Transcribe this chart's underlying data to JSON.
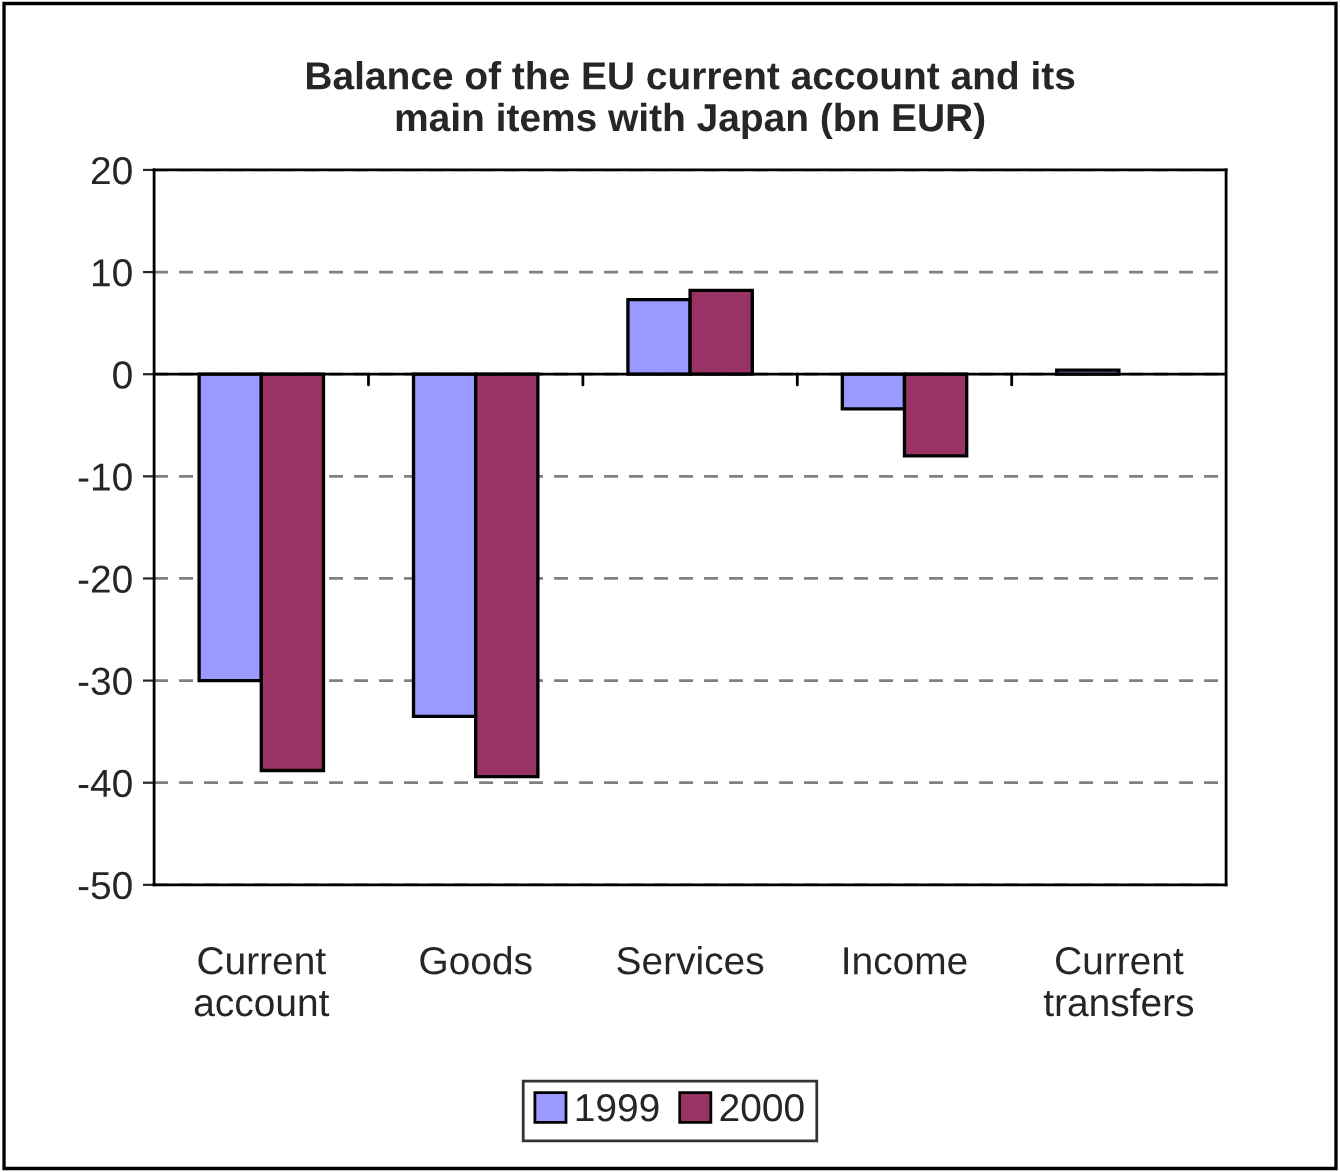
{
  "chart_data": {
    "type": "bar",
    "title": "Balance of the EU current account and its\nmain items with Japan (bn EUR)",
    "categories": [
      "Current\naccount",
      "Goods",
      "Services",
      "Income",
      "Current\ntransfers"
    ],
    "series": [
      {
        "name": "1999",
        "color": "#9999ff",
        "values": [
          -30,
          -33.5,
          7.3,
          -3.4,
          0.4
        ]
      },
      {
        "name": "2000",
        "color": "#993366",
        "values": [
          -38.8,
          -39.4,
          8.2,
          -8.0,
          null
        ]
      }
    ],
    "ylim": [
      -50,
      20
    ],
    "yticks": [
      -50,
      -40,
      -30,
      -20,
      -10,
      0,
      10,
      20
    ],
    "grid": "y",
    "line_style": "dashed",
    "legend": "bottom"
  }
}
